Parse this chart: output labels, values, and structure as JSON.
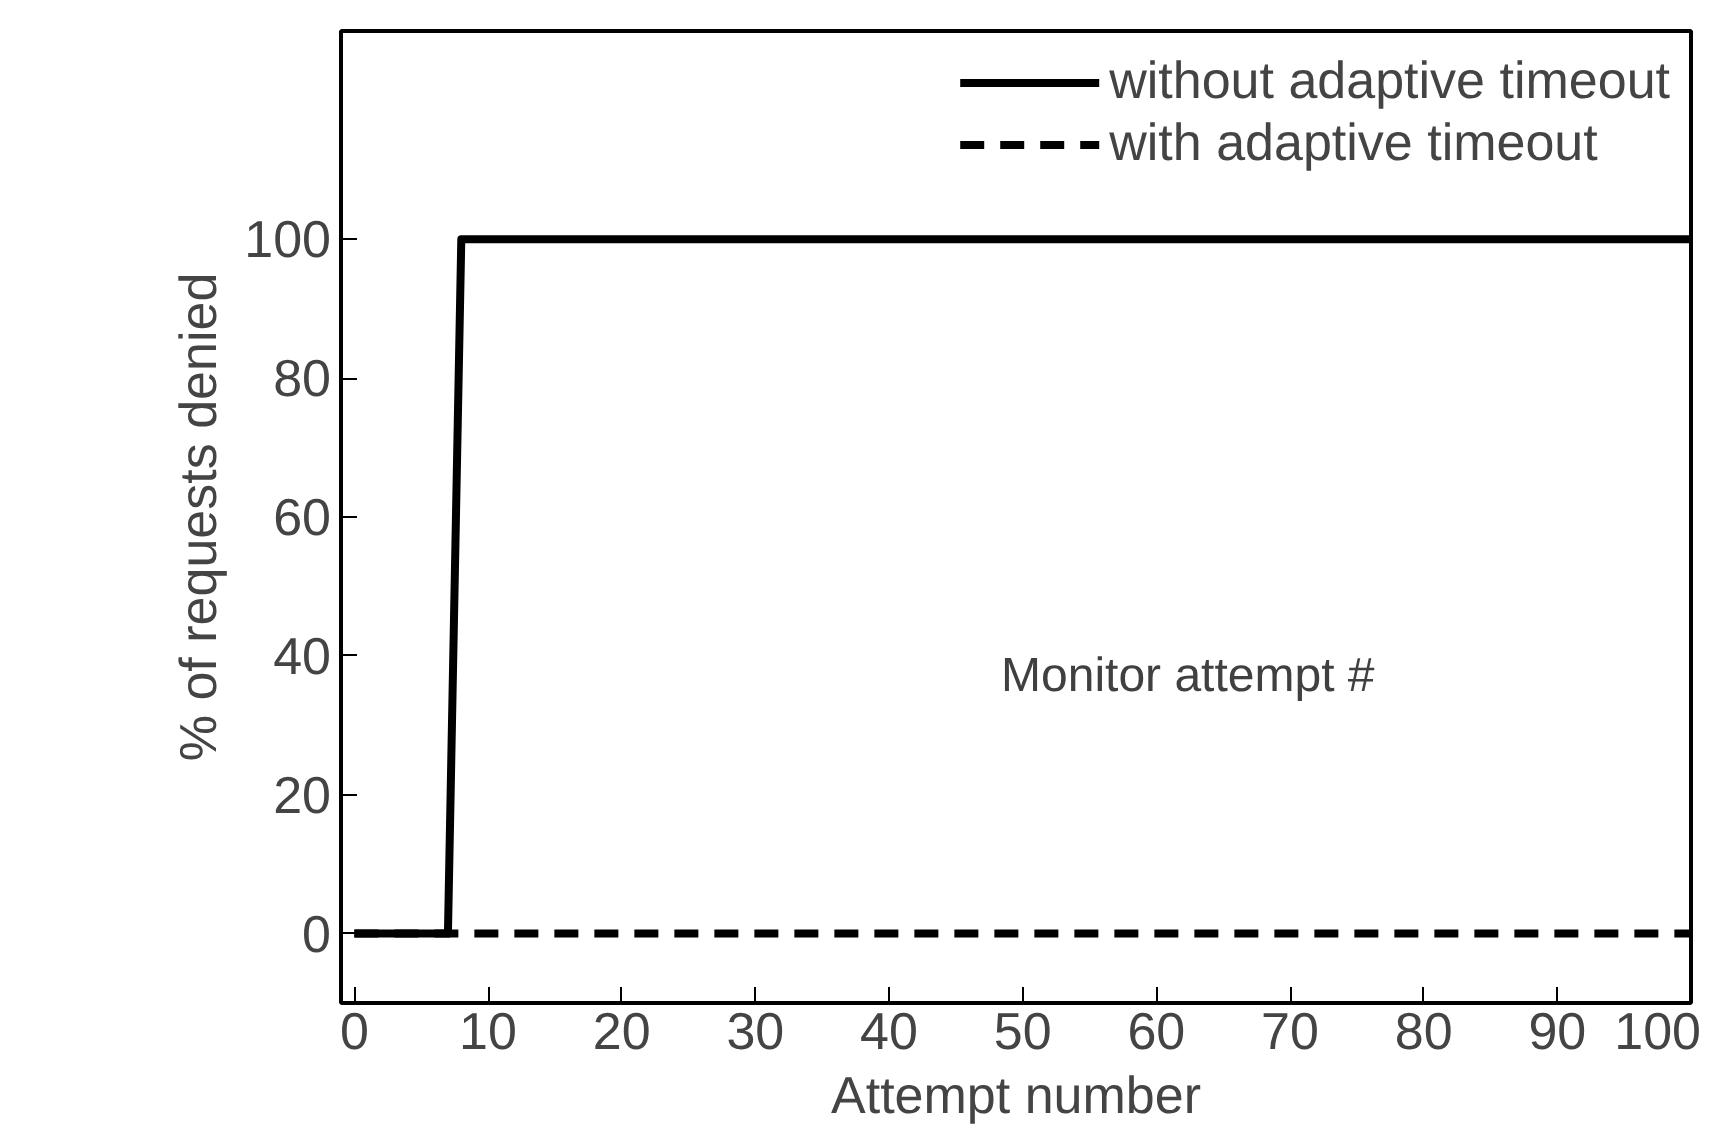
{
  "chart_data": {
    "type": "line",
    "xlabel": "Attempt number",
    "ylabel": "% of requests denied",
    "xlim": [
      -1,
      100
    ],
    "ylim": [
      -10,
      130
    ],
    "xticks": [
      0,
      10,
      20,
      30,
      40,
      50,
      60,
      70,
      80,
      90,
      100
    ],
    "yticks": [
      0,
      20,
      40,
      60,
      80,
      100
    ],
    "grid": false,
    "legend": "top right",
    "marker": "none",
    "series": [
      {
        "name": "without adaptive timeout",
        "color": "#000000",
        "line_style": "solid",
        "x": [
          0,
          7,
          8,
          100
        ],
        "values": [
          0,
          0,
          100,
          100
        ]
      },
      {
        "name": "with adaptive timeout",
        "color": "#000000",
        "line_style": "dashed",
        "x": [
          0,
          100
        ],
        "values": [
          0,
          0
        ]
      }
    ],
    "annotations": [
      "Monitor attempt #"
    ]
  }
}
